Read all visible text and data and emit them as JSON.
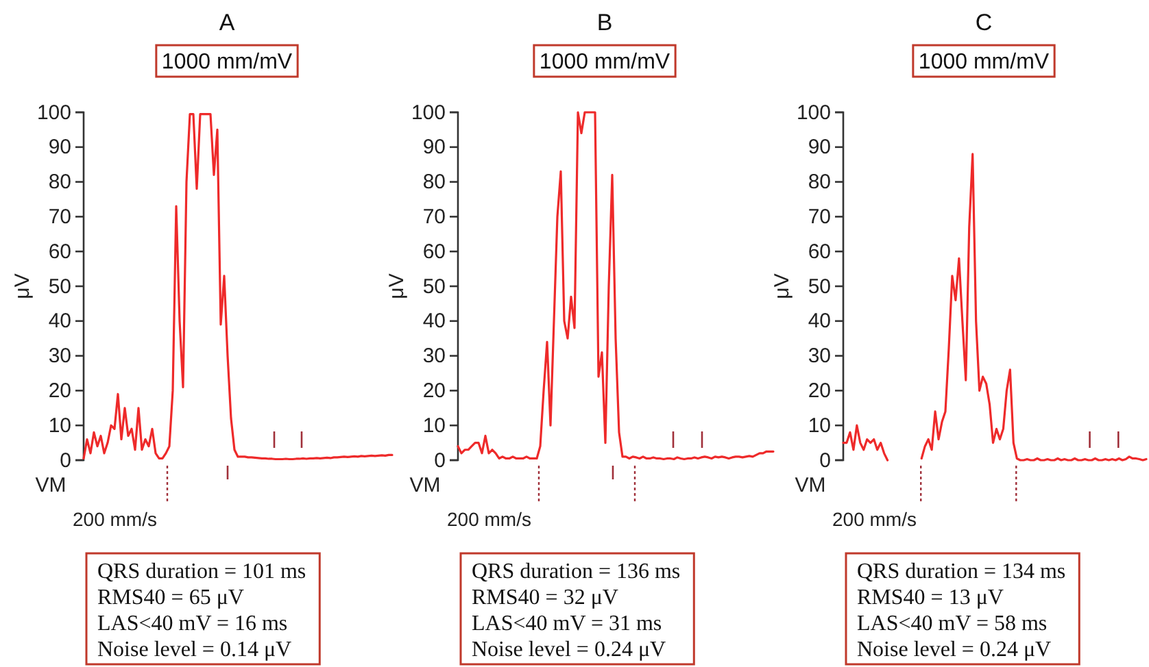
{
  "chart_data": [
    {
      "type": "line",
      "title": "A",
      "subtitle": "1000 mm/mV",
      "ylabel": "μV",
      "annotations": [
        "VM",
        "200 mm/s",
        "QRS duration = 101 ms",
        "RMS40 = 65 μV",
        "LAS<40 mV = 16 ms",
        "Noise level = 0.14 μV"
      ],
      "categories": [
        null,
        null,
        null,
        null,
        null,
        null,
        null,
        null,
        null,
        null,
        null,
        null,
        null,
        null,
        null,
        null,
        null,
        null,
        null,
        null,
        null,
        null,
        null,
        null,
        null,
        null,
        null,
        null,
        null,
        null,
        null,
        null,
        null,
        null,
        null,
        null,
        null,
        null,
        null,
        null,
        null,
        null,
        null,
        null,
        null,
        null,
        null,
        null,
        null,
        null,
        null,
        null,
        null,
        null,
        null,
        null,
        null,
        null,
        null,
        null,
        null,
        null,
        null,
        null,
        null,
        null,
        null,
        null,
        null,
        null,
        null,
        null,
        null,
        null,
        null,
        null,
        null,
        null,
        null,
        null,
        null,
        null,
        null,
        null,
        null,
        null,
        null,
        null,
        null,
        null,
        null
      ],
      "series": [
        {
          "color": "#ee2a2a",
          "values": [
            0.5,
            6,
            2,
            8,
            4,
            7,
            2,
            5,
            10,
            9,
            19,
            6,
            15,
            7,
            9,
            3,
            15,
            3,
            6,
            4,
            9,
            2,
            0.5,
            0.5,
            2,
            4,
            20,
            73,
            40,
            21,
            80,
            99.5,
            99.5,
            78,
            99.5,
            99.5,
            99.5,
            99.5,
            82,
            95,
            39,
            53,
            30,
            12,
            3,
            1,
            1,
            1,
            0.8,
            0.8,
            0.7,
            0.6,
            0.5,
            0.5,
            0.4,
            0.4,
            0.3,
            0.3,
            0.3,
            0.4,
            0.3,
            0.3,
            0.4,
            0.4,
            0.5,
            0.4,
            0.5,
            0.5,
            0.6,
            0.5,
            0.6,
            0.7,
            0.6,
            0.8,
            0.8,
            0.9,
            1,
            0.9,
            1,
            1.1,
            1,
            1.2,
            1.1,
            1.2,
            1.3,
            1.2,
            1.3,
            1.4,
            1.3,
            1.5,
            1.5
          ]
        }
      ],
      "ylim": [
        0,
        100
      ],
      "yticks": [
        0,
        10,
        20,
        30,
        40,
        50,
        60,
        70,
        80,
        90,
        100
      ]
    },
    {
      "type": "line",
      "title": "B",
      "subtitle": "1000 mm/mV",
      "ylabel": "μV",
      "annotations": [
        "VM",
        "200 mm/s",
        "QRS duration = 136 ms",
        "RMS40 = 32 μV",
        "LAS<40 mV = 31 ms",
        "Noise level = 0.24 μV"
      ],
      "categories": [
        null,
        null,
        null,
        null,
        null,
        null,
        null,
        null,
        null,
        null,
        null,
        null,
        null,
        null,
        null,
        null,
        null,
        null,
        null,
        null,
        null,
        null,
        null,
        null,
        null,
        null,
        null,
        null,
        null,
        null,
        null,
        null,
        null,
        null,
        null,
        null,
        null,
        null,
        null,
        null,
        null,
        null,
        null,
        null,
        null,
        null,
        null,
        null,
        null,
        null,
        null,
        null,
        null,
        null,
        null,
        null,
        null,
        null,
        null,
        null,
        null,
        null,
        null,
        null,
        null,
        null,
        null,
        null,
        null,
        null,
        null,
        null,
        null,
        null,
        null,
        null,
        null,
        null,
        null,
        null,
        null,
        null,
        null,
        null,
        null,
        null,
        null,
        null,
        null,
        null,
        null,
        null,
        null
      ],
      "series": [
        {
          "color": "#ee2a2a",
          "values": [
            4,
            2,
            3,
            3,
            4,
            5,
            5,
            2,
            7,
            2,
            3,
            2,
            0.5,
            1,
            0.5,
            0.5,
            1,
            0.5,
            0.5,
            0.5,
            1,
            0.5,
            0.5,
            0.5,
            4,
            20,
            34,
            10,
            40,
            70,
            83,
            40,
            35,
            47,
            38,
            100,
            94,
            100,
            100,
            100,
            100,
            24,
            31,
            5,
            50,
            82,
            35,
            8,
            1,
            1,
            0.5,
            1,
            0.8,
            0.5,
            1,
            0.5,
            0.5,
            0.8,
            0.5,
            0.5,
            0.3,
            0.5,
            0.5,
            0.3,
            0.8,
            0.5,
            0.3,
            0.5,
            0.5,
            0.8,
            0.5,
            0.8,
            1,
            0.8,
            0.5,
            1,
            0.8,
            1,
            0.8,
            0.5,
            0.8,
            1,
            1,
            0.8,
            1,
            1.2,
            1,
            1.5,
            2,
            2,
            2.5,
            2.5,
            2.5
          ]
        }
      ],
      "ylim": [
        0,
        100
      ],
      "yticks": [
        0,
        10,
        20,
        30,
        40,
        50,
        60,
        70,
        80,
        90,
        100
      ]
    },
    {
      "type": "line",
      "title": "C",
      "subtitle": "1000 mm/mV",
      "ylabel": "μV",
      "annotations": [
        "VM",
        "200 mm/s",
        "QRS duration = 134 ms",
        "RMS40 = 13 μV",
        "LAS<40 mV = 58 ms",
        "Noise level = 0.24 μV"
      ],
      "categories": [
        null,
        null,
        null,
        null,
        null,
        null,
        null,
        null,
        null,
        null,
        null,
        null,
        null,
        null,
        null,
        null,
        null,
        null,
        null,
        null,
        null,
        null,
        null,
        null,
        null,
        null,
        null,
        null,
        null,
        null,
        null,
        null,
        null,
        null,
        null,
        null,
        null,
        null,
        null,
        null,
        null,
        null,
        null,
        null,
        null,
        null,
        null,
        null,
        null,
        null,
        null,
        null,
        null,
        null,
        null,
        null,
        null,
        null,
        null,
        null,
        null,
        null,
        null,
        null,
        null,
        null,
        null,
        null,
        null,
        null,
        null,
        null,
        null,
        null,
        null,
        null,
        null,
        null,
        null,
        null,
        null,
        null,
        null,
        null,
        null,
        null,
        null,
        null,
        null,
        null
      ],
      "series": [
        {
          "color": "#ee2a2a",
          "values": [
            5,
            5,
            8,
            3,
            10,
            5,
            3,
            6,
            5,
            6,
            3,
            5,
            2,
            0,
            null,
            null,
            null,
            null,
            null,
            null,
            null,
            null,
            null,
            null,
            null,
            null,
            null,
            null,
            null,
            null,
            null,
            null,
            null,
            null,
            null,
            null,
            null,
            null,
            null,
            null,
            null,
            null,
            null,
            null,
            null,
            null,
            null,
            null,
            null,
            null,
            null,
            null,
            null,
            null,
            null,
            null,
            null,
            null,
            null,
            null,
            null,
            null,
            null,
            null,
            null,
            null,
            null,
            null,
            null,
            null,
            null,
            null,
            null,
            null,
            null,
            null,
            null,
            null,
            null,
            null,
            null,
            null,
            null,
            null,
            null,
            null,
            null,
            null,
            null,
            null
          ]
        },
        {
          "color": "#ee2a2a",
          "values": [
            null,
            null,
            null,
            null,
            null,
            null,
            null,
            null,
            null,
            null,
            null,
            null,
            null,
            null,
            null,
            null,
            null,
            null,
            null,
            null,
            null,
            null,
            null,
            0.5,
            4,
            6,
            3,
            14,
            6,
            11,
            14,
            32,
            53,
            46,
            58,
            40,
            23,
            67,
            88,
            40,
            20,
            24,
            22,
            16,
            5,
            9,
            6,
            9,
            20,
            26,
            5,
            0.5,
            0,
            0,
            0.3,
            0,
            0,
            0.5,
            0,
            0,
            0.3,
            0,
            0,
            0.5,
            0,
            0.3,
            0,
            0,
            0.5,
            0,
            0,
            0.3,
            0,
            0,
            0.5,
            0,
            0,
            0.3,
            0,
            0.3,
            0,
            0.5,
            0,
            0.3,
            1,
            0.5,
            0.5,
            0.3,
            0,
            0.3
          ]
        }
      ],
      "ylim": [
        0,
        100
      ],
      "yticks": [
        0,
        10,
        20,
        30,
        40,
        50,
        60,
        70,
        80,
        90,
        100
      ]
    }
  ]
}
